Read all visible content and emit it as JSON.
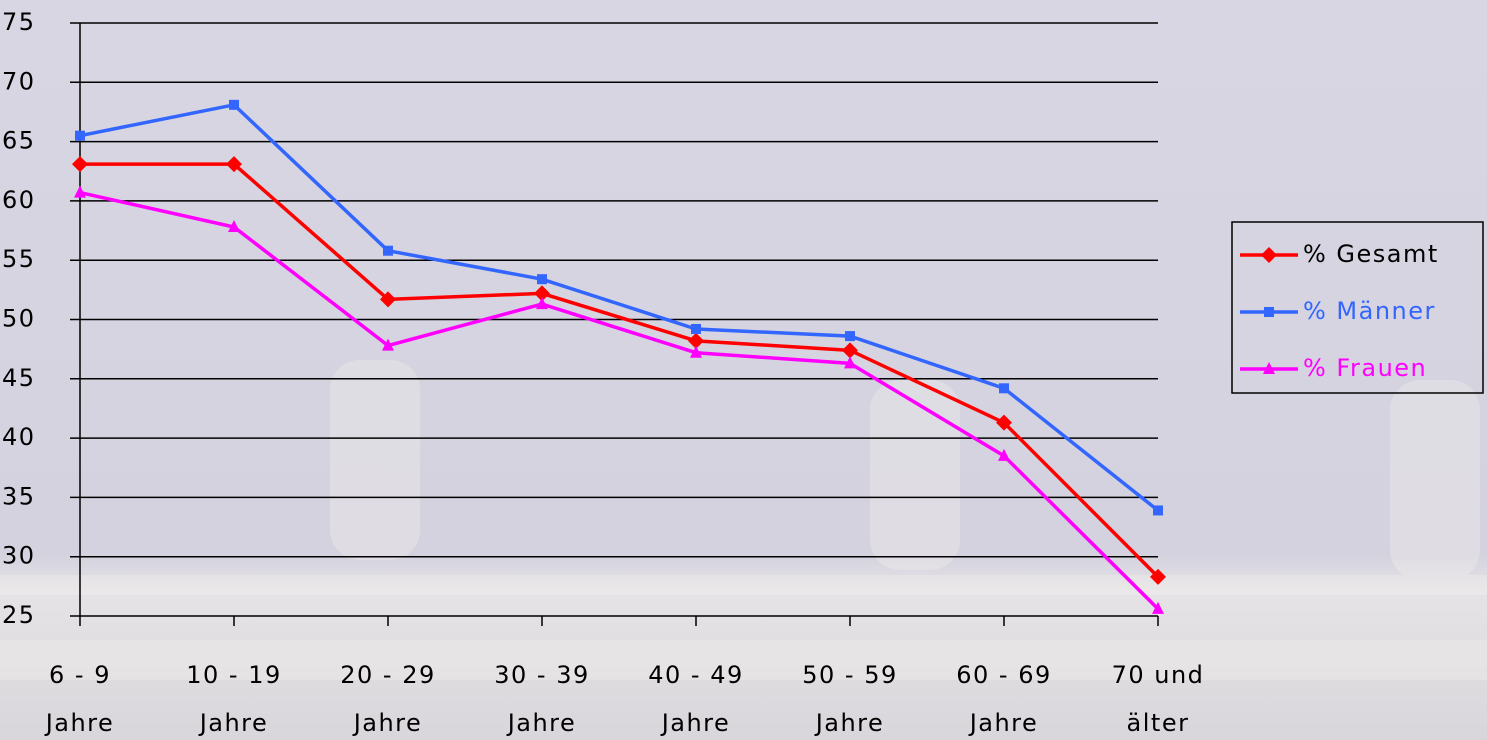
{
  "chart_data": {
    "type": "line",
    "categories": [
      [
        "6 - 9",
        "Jahre"
      ],
      [
        "10 - 19",
        "Jahre"
      ],
      [
        "20 - 29",
        "Jahre"
      ],
      [
        "30 - 39",
        "Jahre"
      ],
      [
        "40 - 49",
        "Jahre"
      ],
      [
        "50 - 59",
        "Jahre"
      ],
      [
        "60 - 69",
        "Jahre"
      ],
      [
        "70 und",
        "älter"
      ]
    ],
    "series": [
      {
        "name": "% Gesamt",
        "color": "#ff0000",
        "marker": "diamond",
        "values": [
          63.1,
          63.1,
          51.7,
          52.2,
          48.2,
          47.4,
          41.3,
          28.3
        ]
      },
      {
        "name": "% Männer",
        "color": "#3366ff",
        "marker": "square",
        "values": [
          65.5,
          68.1,
          55.8,
          53.4,
          49.2,
          48.6,
          44.2,
          33.9
        ]
      },
      {
        "name": "% Frauen",
        "color": "#ff00ff",
        "marker": "triangle",
        "values": [
          60.7,
          57.8,
          47.8,
          51.3,
          47.2,
          46.3,
          38.5,
          25.6
        ]
      }
    ],
    "ylim": [
      25,
      75
    ],
    "yticks": [
      25,
      30,
      35,
      40,
      45,
      50,
      55,
      60,
      65,
      70,
      75
    ],
    "grid": true,
    "legend": "right"
  }
}
